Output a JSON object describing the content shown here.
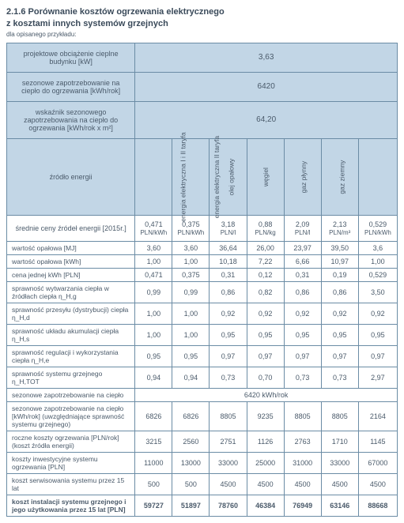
{
  "heading": {
    "line1": "2.1.6 Porównanie kosztów ogrzewania elektrycznego",
    "line2": "z kosztami innych systemów grzejnych",
    "sub": "dla opisanego przykładu:"
  },
  "top": {
    "r1_label": "projektowe obciążenie cieplne budynku [kW]",
    "r1_val": "3,63",
    "r2_label": "sezonowe zapotrzebowanie na ciepło do ogrzewania [kWh/rok]",
    "r2_val": "6420",
    "r3_label": "wskaźnik sezonowego zapotrzebowania na ciepło do ogrzewania [kWh/rok x m²]",
    "r3_val": "64,20"
  },
  "src_label": "źródło energii",
  "cols": {
    "c1": "energia elektryczna I i II taryfa",
    "c2": "energia elektryczna II taryfa",
    "c3": "olej opałowy",
    "c4": "węgiel",
    "c5": "gaz płynny",
    "c6": "gaz ziemny",
    "c7": "pompa ciepła z wymiennikiem gruntowym"
  },
  "price": {
    "label": "średnie ceny źródeł energii [2015r.]",
    "v1a": "0,471",
    "v1b": "PLN/kWh",
    "v2a": "0,375",
    "v2b": "PLN/kWh",
    "v3a": "3,18",
    "v3b": "PLN/l",
    "v4a": "0,88",
    "v4b": "PLN/kg",
    "v5a": "2,09",
    "v5b": "PLN/l",
    "v6a": "2,13",
    "v6b": "PLN/m³",
    "v7a": "0,529",
    "v7b": "PLN/kWh"
  },
  "rows": {
    "r1": {
      "l": "wartość opałowa [MJ]",
      "v": [
        "3,60",
        "3,60",
        "36,64",
        "26,00",
        "23,97",
        "39,50",
        "3,6"
      ]
    },
    "r2": {
      "l": "wartość opałowa [kWh]",
      "v": [
        "1,00",
        "1,00",
        "10,18",
        "7,22",
        "6,66",
        "10,97",
        "1,00"
      ]
    },
    "r3": {
      "l": "cena jednej kWh [PLN]",
      "v": [
        "0,471",
        "0,375",
        "0,31",
        "0,12",
        "0,31",
        "0,19",
        "0,529"
      ]
    },
    "r4": {
      "l": "sprawność wytwarzania ciepła w źródłach ciepła η_H,g",
      "v": [
        "0,99",
        "0,99",
        "0,86",
        "0,82",
        "0,86",
        "0,86",
        "3,50"
      ]
    },
    "r5": {
      "l": "sprawność przesyłu (dystrybucji) ciepła η_H,d",
      "v": [
        "1,00",
        "1,00",
        "0,92",
        "0,92",
        "0,92",
        "0,92",
        "0,92"
      ]
    },
    "r6": {
      "l": "sprawność układu akumulacji ciepła η_H,s",
      "v": [
        "1,00",
        "1,00",
        "0,95",
        "0,95",
        "0,95",
        "0,95",
        "0,95"
      ]
    },
    "r7": {
      "l": "sprawność regulacji i wykorzystania ciepła η_H,e",
      "v": [
        "0,95",
        "0,95",
        "0,97",
        "0,97",
        "0,97",
        "0,97",
        "0,97"
      ]
    },
    "r8": {
      "l": "sprawność systemu grzejnego η_H,TOT",
      "v": [
        "0,94",
        "0,94",
        "0,73",
        "0,70",
        "0,73",
        "0,73",
        "2,97"
      ]
    }
  },
  "sec": {
    "line": "sezonowe zapotrzebowanie na ciepło",
    "span": "6420 kWh/rok",
    "r1": {
      "l": "sezonowe zapotrzebowanie na ciepło [kWh/rok] (uwzględniające sprawność systemu grzejnego)",
      "v": [
        "6826",
        "6826",
        "8805",
        "9235",
        "8805",
        "8805",
        "2164"
      ]
    },
    "r2": {
      "l": "roczne koszty ogrzewania [PLN/rok] (koszt źródła energii)",
      "v": [
        "3215",
        "2560",
        "2751",
        "1126",
        "2763",
        "1710",
        "1145"
      ]
    },
    "r3": {
      "l": "koszty inwestycyjne systemu ogrzewania [PLN]",
      "v": [
        "11000",
        "13000",
        "33000",
        "25000",
        "31000",
        "33000",
        "67000"
      ]
    },
    "r4": {
      "l": "koszt serwisowania systemu przez 15 lat",
      "v": [
        "500",
        "500",
        "4500",
        "4500",
        "4500",
        "4500",
        "4500"
      ]
    }
  },
  "total": {
    "l": "koszt instalacji systemu grzejnego i jego użytkowania przez 15 lat [PLN]",
    "v": [
      "59727",
      "51897",
      "78760",
      "46384",
      "76949",
      "63146",
      "88668"
    ]
  }
}
